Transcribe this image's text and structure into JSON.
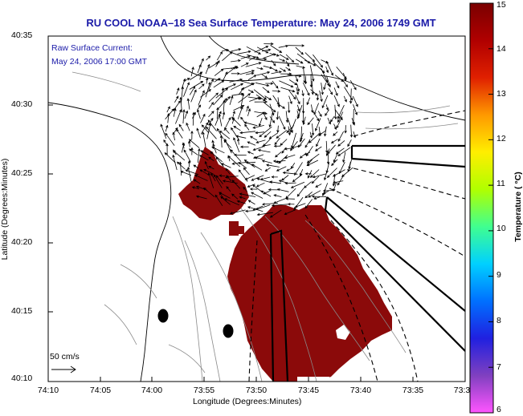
{
  "title": "RU COOL  NOAA–18  Sea Surface Temperature:  May 24, 2006 1749 GMT",
  "current_label": {
    "line1": "Raw Surface Current:",
    "line2": "May 24, 2006 17:00 GMT"
  },
  "axes": {
    "xlabel": "Longitude (Degrees:Minutes)",
    "ylabel": "Latitude (Degrees:Minutes)",
    "xticks": [
      "74:10",
      "74:05",
      "74:00",
      "73:55",
      "73:50",
      "73:45",
      "73:40",
      "73:35",
      "73:3"
    ],
    "yticks": [
      "40:35",
      "40:30",
      "40:25",
      "40:20",
      "40:15",
      "40:10"
    ]
  },
  "colorbar": {
    "label": "Temperature ( °C)",
    "ticks": [
      "15",
      "14",
      "13",
      "12",
      "11",
      "10",
      "9",
      "8",
      "7",
      "6"
    ],
    "range": [
      6,
      15
    ],
    "colors": [
      "#ff55ff",
      "#8040c0",
      "#2020e0",
      "#0070ff",
      "#00d0ff",
      "#40ff90",
      "#b0ff00",
      "#ffee00",
      "#ff9900",
      "#e02000",
      "#b00000",
      "#7a0000"
    ]
  },
  "scale_label": "50 cm/s",
  "colors": {
    "sst_patch": "#8b0a0a",
    "text_blue": "#1a1aa8",
    "land": "#ffffff",
    "contour": "#9a9a9a"
  }
}
